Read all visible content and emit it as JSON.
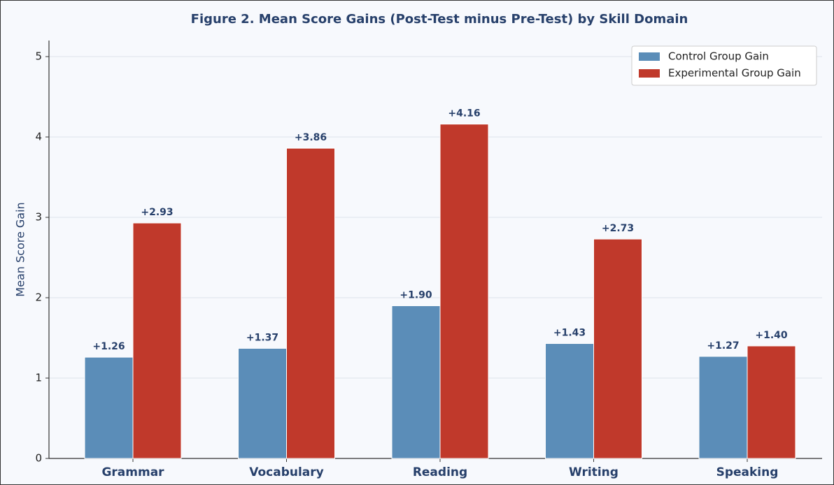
{
  "chart_data": {
    "type": "bar",
    "title": "Figure 2. Mean Score Gains (Post-Test minus Pre-Test) by Skill Domain",
    "ylabel": "Mean Score Gain",
    "categories": [
      "Grammar",
      "Vocabulary",
      "Reading",
      "Writing",
      "Speaking"
    ],
    "series": [
      {
        "name": "Control Group Gain",
        "color": "#5b8db8",
        "values": [
          1.26,
          1.37,
          1.9,
          1.43,
          1.27
        ],
        "value_labels": [
          "+1.26",
          "+1.37",
          "+1.90",
          "+1.43",
          "+1.27"
        ]
      },
      {
        "name": "Experimental Group Gain",
        "color": "#c0392b",
        "values": [
          2.93,
          3.86,
          4.16,
          2.73,
          1.4
        ],
        "value_labels": [
          "+2.93",
          "+3.86",
          "+4.16",
          "+2.73",
          "+1.40"
        ]
      }
    ],
    "ylim": [
      0,
      5.2
    ],
    "yticks": [
      0,
      1,
      2,
      3,
      4,
      5
    ],
    "grid": true,
    "legend": "upper right"
  }
}
